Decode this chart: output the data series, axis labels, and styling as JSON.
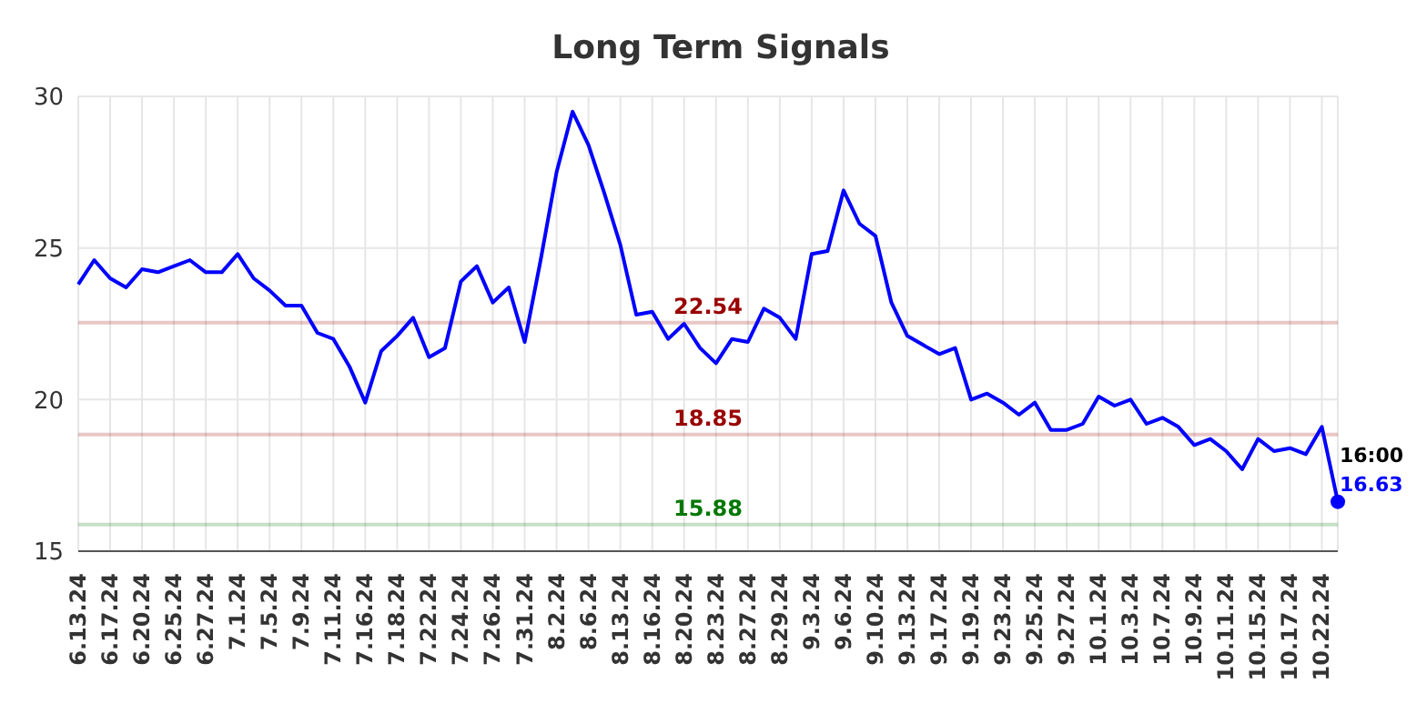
{
  "chart_data": {
    "type": "line",
    "title": "Long Term Signals",
    "categories": [
      "6.13.24",
      null,
      "6.17.24",
      null,
      "6.20.24",
      null,
      "6.25.24",
      null,
      "6.27.24",
      null,
      "7.1.24",
      null,
      "7.5.24",
      null,
      "7.9.24",
      null,
      "7.11.24",
      null,
      "7.16.24",
      null,
      "7.18.24",
      null,
      "7.22.24",
      null,
      "7.24.24",
      null,
      "7.26.24",
      null,
      "7.31.24",
      null,
      "8.2.24",
      null,
      "8.6.24",
      null,
      "8.13.24",
      null,
      "8.16.24",
      null,
      "8.20.24",
      null,
      "8.23.24",
      null,
      "8.27.24",
      null,
      "8.29.24",
      null,
      "9.3.24",
      null,
      "9.6.24",
      null,
      "9.10.24",
      null,
      "9.13.24",
      null,
      "9.17.24",
      null,
      "9.19.24",
      null,
      "9.23.24",
      null,
      "9.25.24",
      null,
      "9.27.24",
      null,
      "10.1.24",
      null,
      "10.3.24",
      null,
      "10.7.24",
      null,
      "10.9.24",
      null,
      "10.11.24",
      null,
      "10.15.24",
      null,
      "10.17.24",
      null,
      "10.22.24",
      null
    ],
    "series": [
      {
        "color": "#0000ff",
        "values": [
          23.8,
          24.6,
          24.0,
          23.7,
          24.3,
          24.2,
          24.4,
          24.6,
          24.2,
          24.2,
          24.8,
          24.0,
          23.6,
          23.1,
          23.1,
          22.2,
          22.0,
          21.1,
          19.9,
          21.6,
          22.1,
          22.7,
          21.4,
          21.7,
          23.9,
          24.4,
          23.2,
          23.7,
          21.9,
          24.6,
          27.5,
          29.5,
          28.4,
          26.8,
          25.1,
          22.8,
          22.9,
          22.0,
          22.5,
          21.7,
          21.2,
          22.0,
          21.9,
          23.0,
          22.7,
          22.0,
          24.8,
          24.9,
          26.9,
          25.8,
          25.4,
          23.2,
          22.1,
          21.8,
          21.5,
          21.7,
          20.0,
          20.2,
          19.9,
          19.5,
          19.9,
          19.0,
          19.0,
          19.2,
          20.1,
          19.8,
          20.0,
          19.2,
          19.4,
          19.1,
          18.5,
          18.7,
          18.3,
          17.7,
          18.7,
          18.3,
          18.4,
          18.2,
          19.1,
          16.63
        ],
        "value_labels": [
          null,
          null,
          null,
          null,
          null,
          null,
          null,
          null,
          null,
          null,
          null,
          null,
          null,
          null,
          null,
          null,
          null,
          null,
          null,
          null,
          null,
          null,
          null,
          null,
          null,
          null,
          null,
          null,
          null,
          null,
          null,
          null,
          null,
          null,
          null,
          null,
          null,
          null,
          null,
          null,
          null,
          null,
          null,
          null,
          null,
          null,
          null,
          null,
          null,
          null,
          null,
          null,
          null,
          null,
          null,
          null,
          null,
          null,
          null,
          null,
          null,
          null,
          null,
          null,
          null,
          null,
          null,
          null,
          null,
          null,
          null,
          null,
          null,
          null,
          null,
          null,
          null,
          null,
          null,
          "16.63"
        ]
      }
    ],
    "annotations": [
      "16:00"
    ],
    "ylim": [
      15,
      30
    ],
    "yticks": [
      15,
      20,
      25,
      30
    ],
    "grid": true,
    "marker": "none",
    "line_style": "solid",
    "ref_lines": [
      {
        "axis": "y",
        "value": 22.54,
        "label": "22.54",
        "color": "#990000"
      },
      {
        "axis": "y",
        "value": 18.85,
        "label": "18.85",
        "color": "#990000"
      },
      {
        "axis": "y",
        "value": 15.88,
        "label": "15.88",
        "color": "#007700"
      }
    ]
  }
}
